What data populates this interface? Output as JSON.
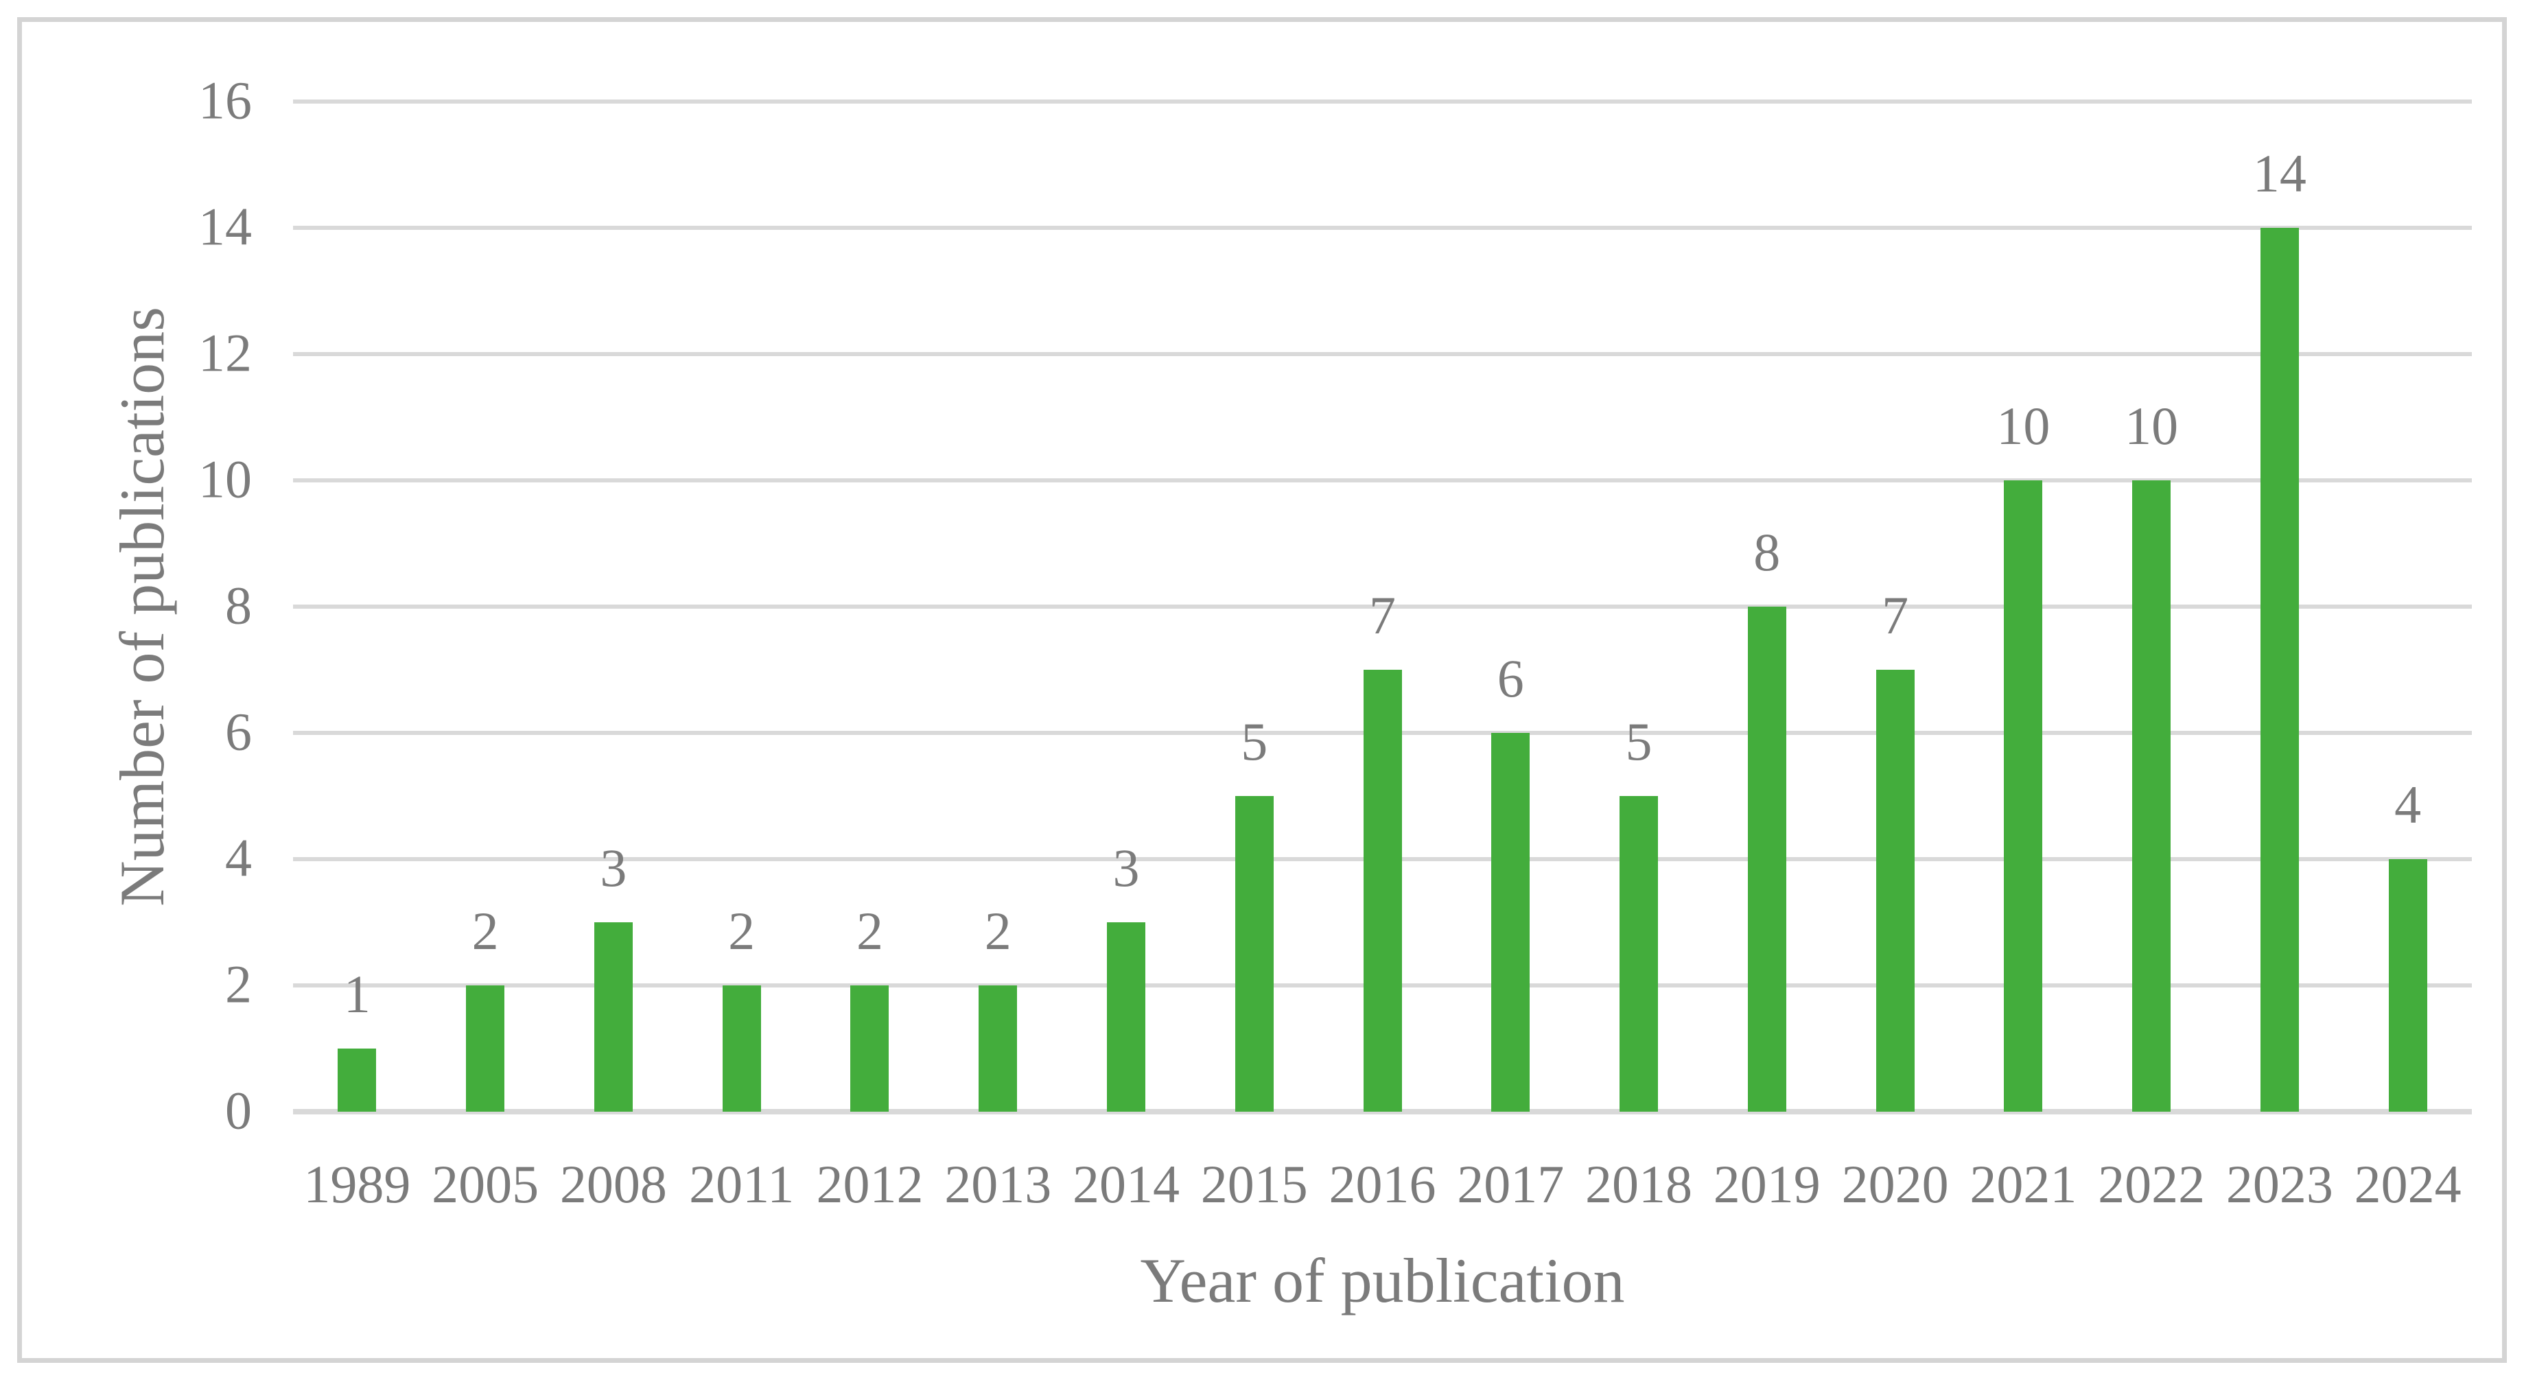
{
  "chart_data": {
    "type": "bar",
    "title": "",
    "categories": [
      "1989",
      "2005",
      "2008",
      "2011",
      "2012",
      "2013",
      "2014",
      "2015",
      "2016",
      "2017",
      "2018",
      "2019",
      "2020",
      "2021",
      "2022",
      "2023",
      "2024"
    ],
    "values": [
      1,
      2,
      3,
      2,
      2,
      2,
      3,
      5,
      7,
      6,
      5,
      8,
      7,
      10,
      10,
      14,
      4
    ],
    "data_labels": [
      "1",
      "2",
      "3",
      "2",
      "2",
      "2",
      "3",
      "5",
      "7",
      "6",
      "5",
      "8",
      "7",
      "10",
      "10",
      "14",
      "4"
    ],
    "xlabel": "Year of publication",
    "ylabel": "Number of publications",
    "ylim": [
      0,
      16
    ],
    "yticks": [
      0,
      2,
      4,
      6,
      8,
      10,
      12,
      14,
      16
    ],
    "grid": true,
    "legend": "none",
    "colors": {
      "bar": "#43ad3c",
      "text": "#7b7b7b",
      "gridline": "#d9d9d9",
      "frame_border": "#d4d4d4",
      "background": "#ffffff"
    }
  }
}
